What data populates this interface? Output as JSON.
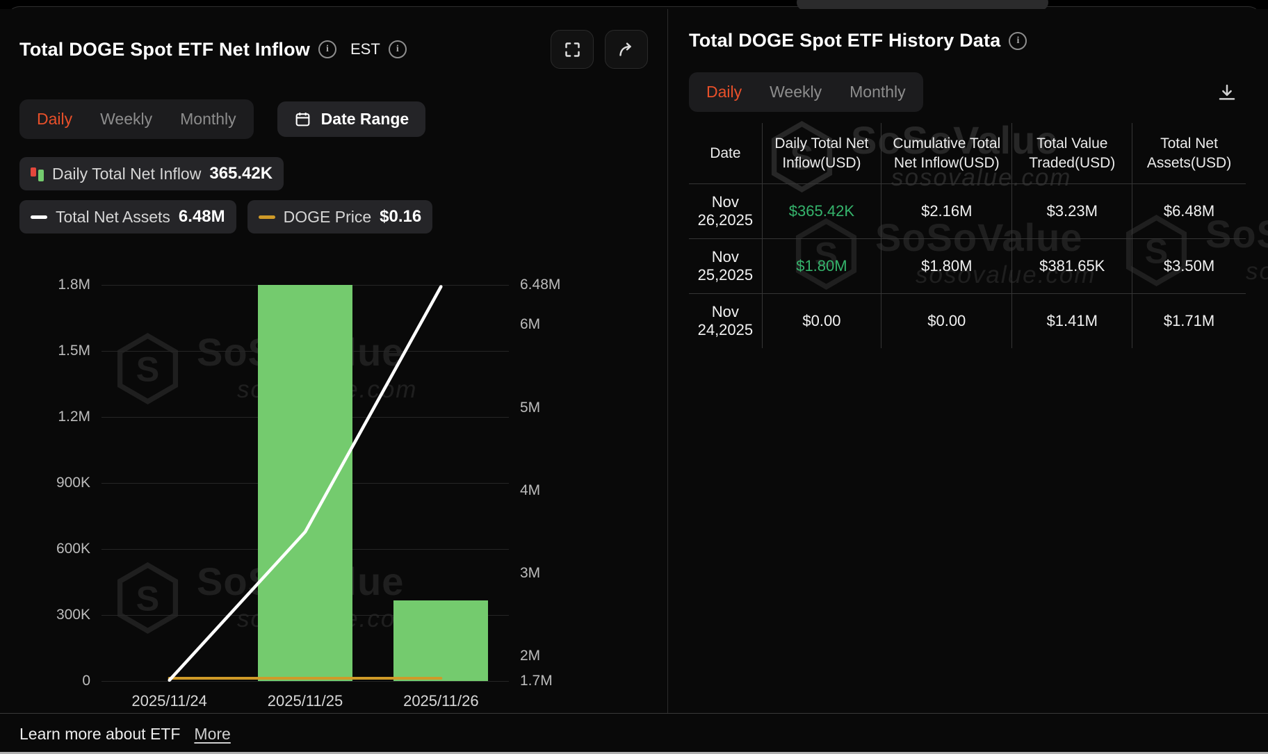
{
  "watermark": {
    "brand": "SoSoValue",
    "domain": "sosovalue.com"
  },
  "left_panel": {
    "title": "Total DOGE Spot ETF Net Inflow",
    "est_label": "EST",
    "tabs": [
      {
        "label": "Daily",
        "active": true
      },
      {
        "label": "Weekly",
        "active": false
      },
      {
        "label": "Monthly",
        "active": false
      }
    ],
    "date_range_label": "Date Range",
    "legend": [
      {
        "label": "Daily Total Net Inflow",
        "value": "365.42K",
        "icon": "bar-legend-icon",
        "colors": [
          "#e3473c",
          "#74cb6e"
        ]
      },
      {
        "label": "Total Net Assets",
        "value": "6.48M",
        "icon": "line-legend-icon",
        "colors": [
          "#ffffff"
        ]
      },
      {
        "label": "DOGE Price",
        "value": "$0.16",
        "icon": "line-legend-icon",
        "colors": [
          "#cf9a28"
        ]
      }
    ]
  },
  "chart_data": {
    "type": "bar",
    "title": "Total DOGE Spot ETF Net Inflow",
    "categories": [
      "2025/11/24",
      "2025/11/25",
      "2025/11/26"
    ],
    "series": [
      {
        "name": "Daily Total Net Inflow",
        "type": "bar",
        "axis": "left",
        "color": "#74cb6e",
        "values": [
          0,
          1800000,
          365420
        ]
      },
      {
        "name": "Total Net Assets",
        "type": "line",
        "axis": "right",
        "color": "#ffffff",
        "values": [
          1710000,
          3500000,
          6480000
        ]
      },
      {
        "name": "DOGE Price",
        "type": "line",
        "axis": "hidden",
        "color": "#cf9a28",
        "values": [
          0.16,
          0.16,
          0.16
        ]
      }
    ],
    "left_axis": {
      "range": [
        0,
        1800000
      ],
      "ticks": [
        0,
        300000,
        600000,
        900000,
        1200000,
        1500000,
        1800000
      ],
      "tick_labels": [
        "0",
        "300K",
        "600K",
        "900K",
        "1.2M",
        "1.5M",
        "1.8M"
      ]
    },
    "right_axis": {
      "range": [
        1700000,
        6480000
      ],
      "ticks": [
        1700000,
        2000000,
        3000000,
        4000000,
        5000000,
        6000000,
        6480000
      ],
      "tick_labels": [
        "1.7M",
        "2M",
        "3M",
        "4M",
        "5M",
        "6M",
        "6.48M"
      ]
    },
    "grid": true,
    "legend_position": "top"
  },
  "right_panel": {
    "title": "Total DOGE Spot ETF History Data",
    "tabs": [
      {
        "label": "Daily",
        "active": true
      },
      {
        "label": "Weekly",
        "active": false
      },
      {
        "label": "Monthly",
        "active": false
      }
    ],
    "table": {
      "headers": [
        "Date",
        "Daily Total Net Inflow(USD)",
        "Cumulative Total Net Inflow(USD)",
        "Total Value Traded(USD)",
        "Total Net Assets(USD)"
      ],
      "rows": [
        {
          "cells": [
            "Nov 26,2025",
            "$365.42K",
            "$2.16M",
            "$3.23M",
            "$6.48M"
          ],
          "green_cols": [
            1
          ]
        },
        {
          "cells": [
            "Nov 25,2025",
            "$1.80M",
            "$1.80M",
            "$381.65K",
            "$3.50M"
          ],
          "green_cols": [
            1
          ]
        },
        {
          "cells": [
            "Nov 24,2025",
            "$0.00",
            "$0.00",
            "$1.41M",
            "$1.71M"
          ],
          "green_cols": []
        }
      ]
    },
    "positive_value_color": "#35b46c",
    "active_tab_color": "#e8502a"
  },
  "footer": {
    "text": "Learn more about ETF",
    "link_label": "More"
  }
}
